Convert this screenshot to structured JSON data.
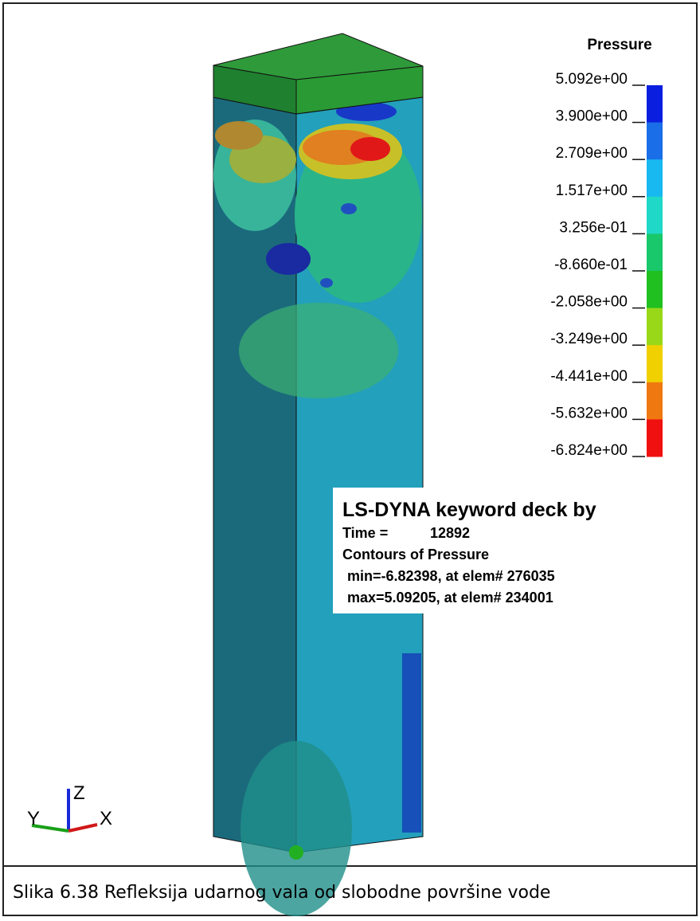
{
  "legend": {
    "title": "Pressure",
    "labels": [
      "5.092e+00",
      "3.900e+00",
      "2.709e+00",
      "1.517e+00",
      "3.256e-01",
      "-8.660e-01",
      "-2.058e+00",
      "-3.249e+00",
      "-4.441e+00",
      "-5.632e+00",
      "-6.824e+00"
    ],
    "colors": [
      "#0a1ee0",
      "#1a6ee8",
      "#18b8f0",
      "#20d8c8",
      "#18c86a",
      "#20c020",
      "#98d818",
      "#f0d000",
      "#f07810",
      "#f01010"
    ]
  },
  "info": {
    "title": "LS-DYNA keyword deck by",
    "time_label": "Time =",
    "time_value": "12892",
    "lines": [
      "Contours of Pressure",
      "min=-6.82398, at elem# 276035",
      "max=5.09205, at elem# 234001"
    ]
  },
  "triad": {
    "z": "Z",
    "y": "Y",
    "x": "X"
  },
  "caption": "Slika 6.38 Refleksija udarnog vala od slobodne površine vode"
}
